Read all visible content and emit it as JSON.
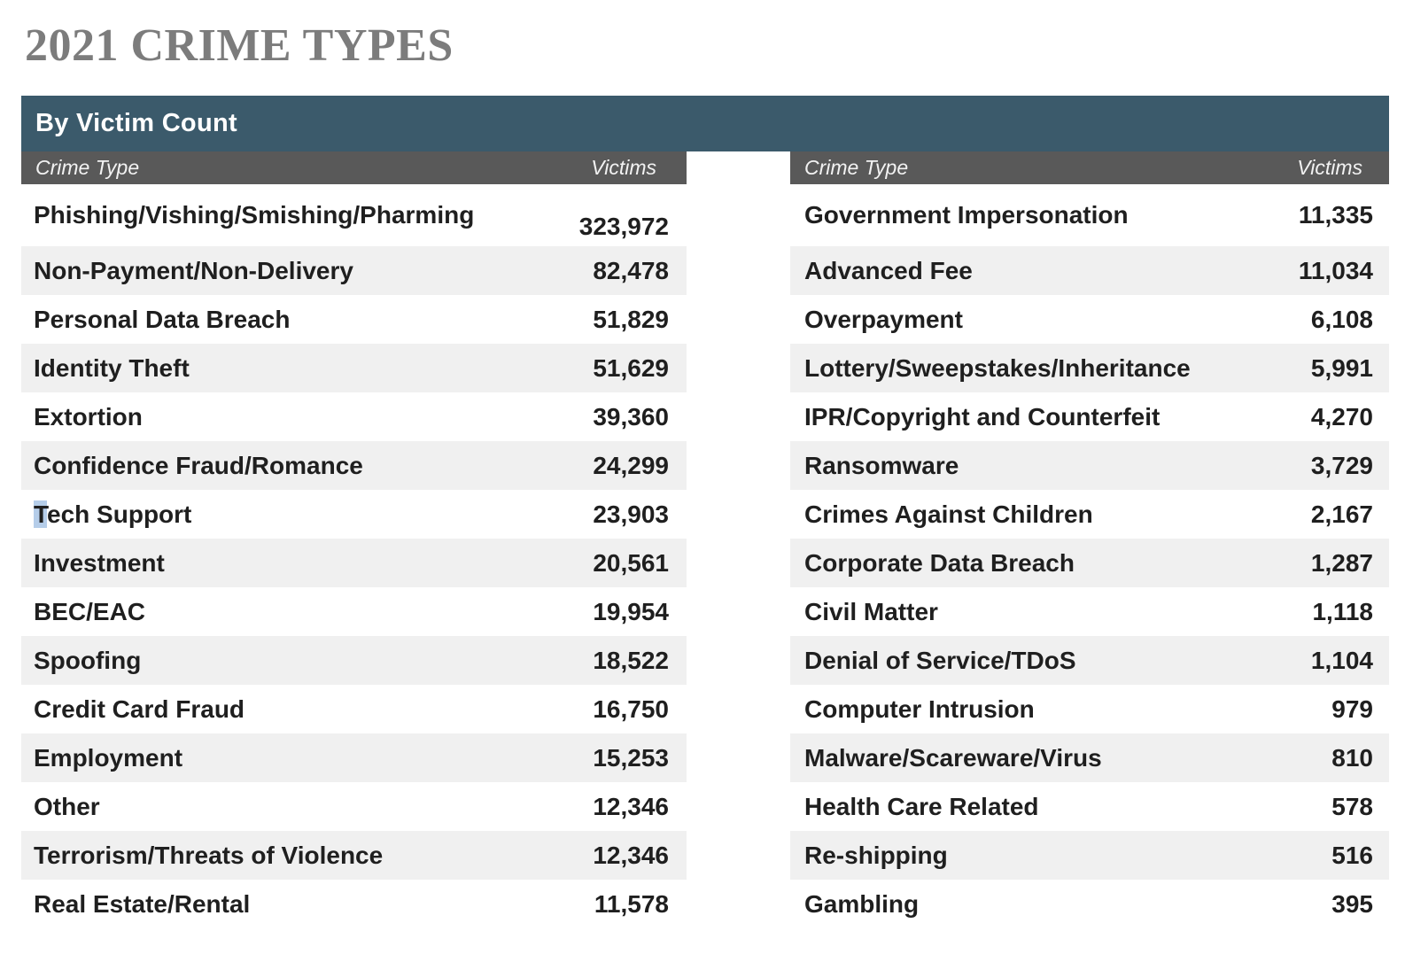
{
  "page_title": "2021 CRIME TYPES",
  "table": {
    "header": "By Victim Count",
    "column_headers": {
      "crime_type": "Crime Type",
      "victims": "Victims"
    },
    "rows": [
      {
        "left": {
          "label": "Phishing/Vishing/Smishing/Pharming",
          "value": "323,972"
        },
        "right": {
          "label": "Government Impersonation",
          "value": "11,335"
        }
      },
      {
        "left": {
          "label": "Non-Payment/Non-Delivery",
          "value": "82,478"
        },
        "right": {
          "label": "Advanced Fee",
          "value": "11,034"
        }
      },
      {
        "left": {
          "label": "Personal Data Breach",
          "value": "51,829"
        },
        "right": {
          "label": "Overpayment",
          "value": "6,108"
        }
      },
      {
        "left": {
          "label": "Identity Theft",
          "value": "51,629"
        },
        "right": {
          "label": "Lottery/Sweepstakes/Inheritance",
          "value": "5,991"
        }
      },
      {
        "left": {
          "label": "Extortion",
          "value": "39,360"
        },
        "right": {
          "label": "IPR/Copyright and Counterfeit",
          "value": "4,270"
        }
      },
      {
        "left": {
          "label": "Confidence Fraud/Romance",
          "value": "24,299"
        },
        "right": {
          "label": "Ransomware",
          "value": "3,729"
        }
      },
      {
        "left": {
          "label": "Tech Support",
          "value": "23,903",
          "selection": "T"
        },
        "right": {
          "label": "Crimes Against Children",
          "value": "2,167"
        }
      },
      {
        "left": {
          "label": "Investment",
          "value": "20,561"
        },
        "right": {
          "label": "Corporate Data Breach",
          "value": "1,287"
        }
      },
      {
        "left": {
          "label": "BEC/EAC",
          "value": "19,954"
        },
        "right": {
          "label": "Civil Matter",
          "value": "1,118"
        }
      },
      {
        "left": {
          "label": "Spoofing",
          "value": "18,522"
        },
        "right": {
          "label": "Denial of Service/TDoS",
          "value": "1,104"
        }
      },
      {
        "left": {
          "label": "Credit Card Fraud",
          "value": "16,750"
        },
        "right": {
          "label": "Computer Intrusion",
          "value": "979"
        }
      },
      {
        "left": {
          "label": "Employment",
          "value": "15,253"
        },
        "right": {
          "label": "Malware/Scareware/Virus",
          "value": "810"
        }
      },
      {
        "left": {
          "label": "Other",
          "value": "12,346"
        },
        "right": {
          "label": "Health Care Related",
          "value": "578"
        }
      },
      {
        "left": {
          "label": "Terrorism/Threats of Violence",
          "value": "12,346"
        },
        "right": {
          "label": "Re-shipping",
          "value": "516"
        }
      },
      {
        "left": {
          "label": "Real Estate/Rental",
          "value": "11,578"
        },
        "right": {
          "label": "Gambling",
          "value": "395"
        }
      }
    ]
  },
  "chart_data": {
    "type": "table",
    "title": "2021 CRIME TYPES",
    "subtitle": "By Victim Count",
    "columns": [
      "Crime Type",
      "Victims"
    ],
    "categories": [
      "Phishing/Vishing/Smishing/Pharming",
      "Non-Payment/Non-Delivery",
      "Personal Data Breach",
      "Identity Theft",
      "Extortion",
      "Confidence Fraud/Romance",
      "Tech Support",
      "Investment",
      "BEC/EAC",
      "Spoofing",
      "Credit Card Fraud",
      "Employment",
      "Other",
      "Terrorism/Threats of Violence",
      "Real Estate/Rental",
      "Government Impersonation",
      "Advanced Fee",
      "Overpayment",
      "Lottery/Sweepstakes/Inheritance",
      "IPR/Copyright and Counterfeit",
      "Ransomware",
      "Crimes Against Children",
      "Corporate Data Breach",
      "Civil Matter",
      "Denial of Service/TDoS",
      "Computer Intrusion",
      "Malware/Scareware/Virus",
      "Health Care Related",
      "Re-shipping",
      "Gambling"
    ],
    "values": [
      323972,
      82478,
      51829,
      51629,
      39360,
      24299,
      23903,
      20561,
      19954,
      18522,
      16750,
      15253,
      12346,
      12346,
      11578,
      11335,
      11034,
      6108,
      5991,
      4270,
      3729,
      2167,
      1287,
      1118,
      1104,
      979,
      810,
      578,
      516,
      395
    ]
  },
  "colors": {
    "title_text": "#7c7c7c",
    "header_band": "#3b5a6b",
    "column_header_band": "#595959",
    "row_stripe": "#f0f0f0",
    "body_text": "#1f1f1f",
    "selection_highlight": "#b5cde9"
  }
}
